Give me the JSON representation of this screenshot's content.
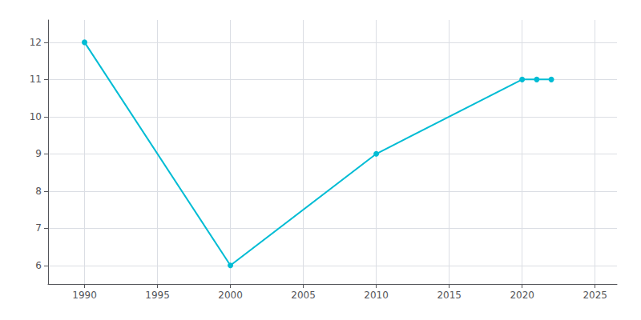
{
  "chart_data": {
    "type": "line",
    "x": [
      1990,
      2000,
      2010,
      2020,
      2021,
      2022
    ],
    "values": [
      12,
      6,
      9,
      11,
      11,
      11
    ],
    "color": "#00bcd4",
    "marker": "circle",
    "xlim": [
      1987.5,
      2026.5
    ],
    "ylim": [
      5.5,
      12.6
    ],
    "xticks": [
      1990,
      1995,
      2000,
      2005,
      2010,
      2015,
      2020,
      2025
    ],
    "yticks": [
      6,
      7,
      8,
      9,
      10,
      11,
      12
    ],
    "grid": true
  }
}
